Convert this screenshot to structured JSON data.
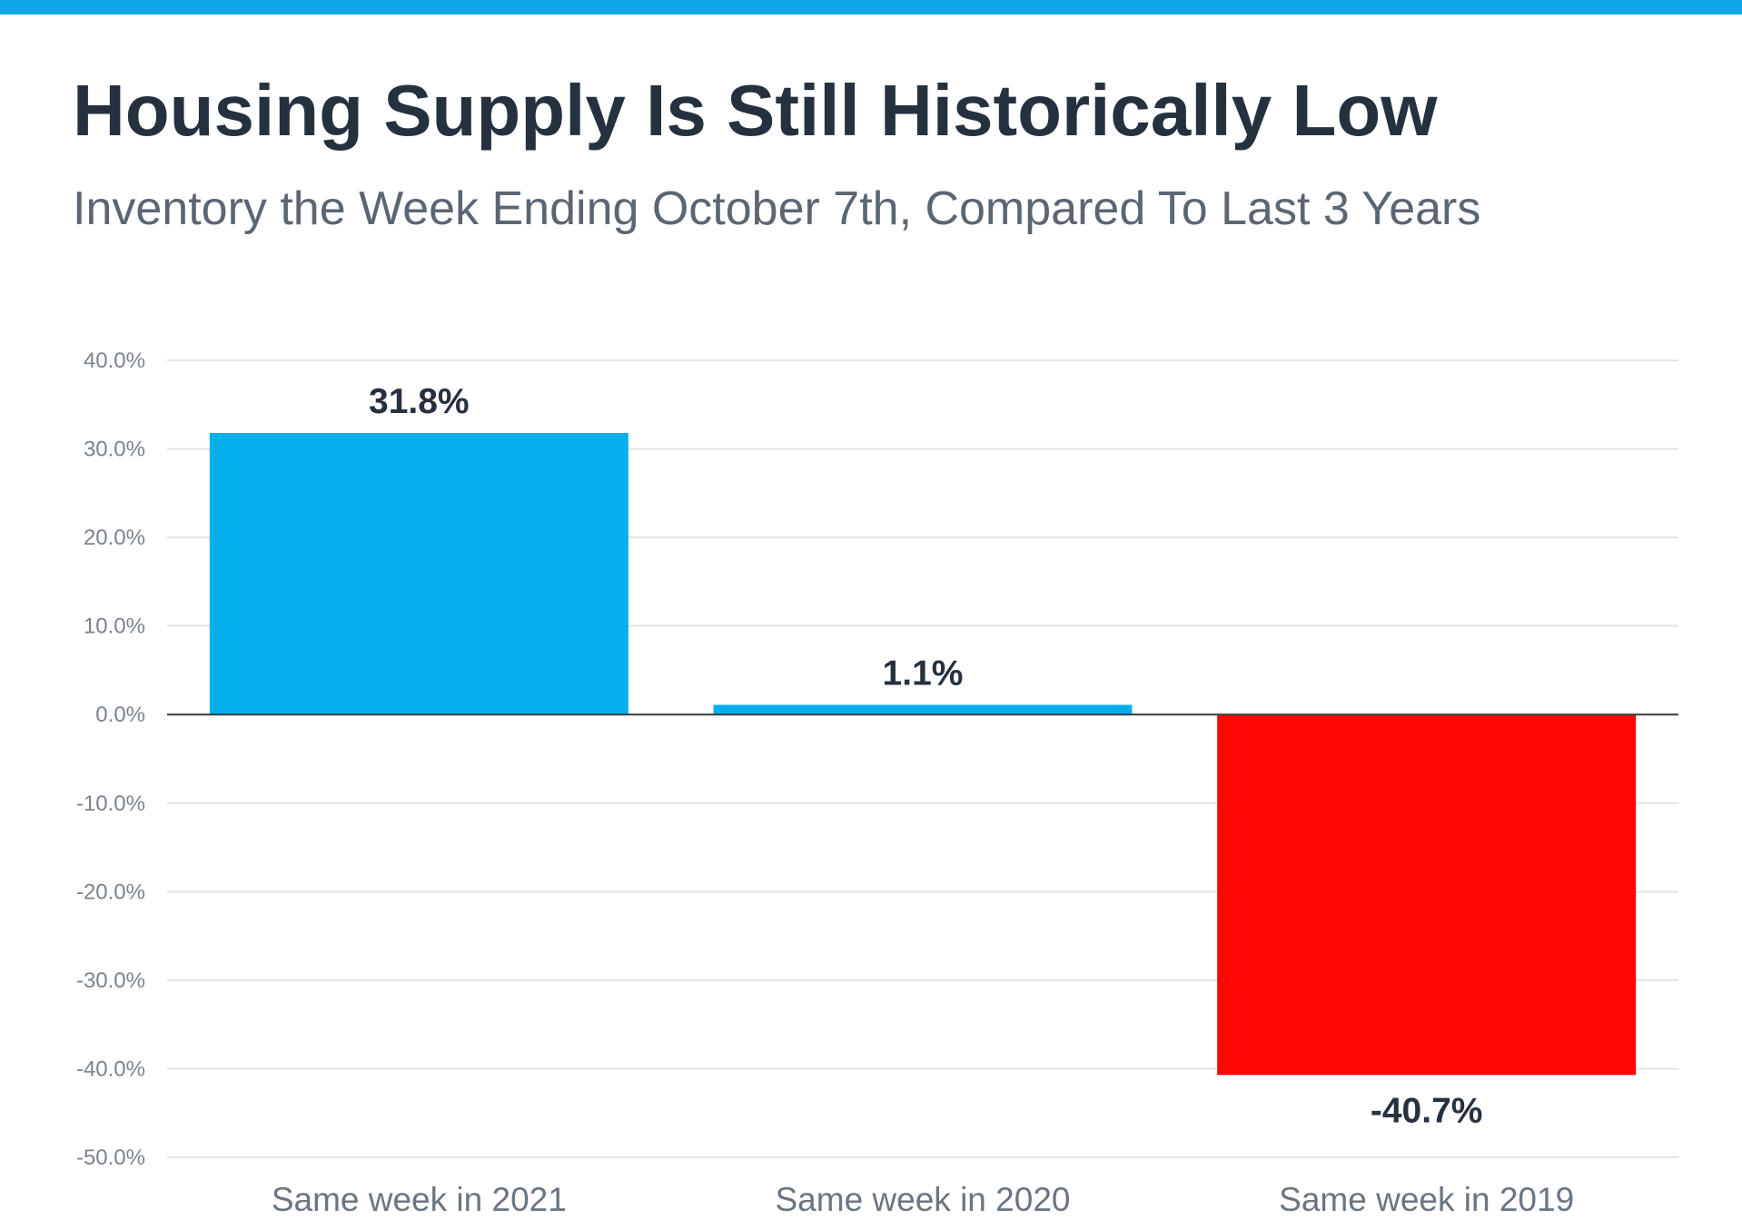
{
  "header": {
    "title": "Housing Supply Is Still Historically Low",
    "subtitle": "Inventory the Week Ending October 7th, Compared To Last 3 Years"
  },
  "colors": {
    "brand_bar": "#0ea5e9",
    "positive": "#06aeec",
    "negative": "#ff0503"
  },
  "chart_data": {
    "type": "bar",
    "title": "Housing Supply Is Still Historically Low",
    "subtitle": "Inventory the Week Ending October 7th, Compared To Last 3 Years",
    "xlabel": "",
    "ylabel": "",
    "categories": [
      "Same week in 2021",
      "Same week in 2020",
      "Same week in 2019"
    ],
    "values": [
      31.8,
      1.1,
      -40.7
    ],
    "data_labels": [
      "31.8%",
      "1.1%",
      "-40.7%"
    ],
    "ylim": [
      -50,
      40
    ],
    "yticks": [
      40,
      30,
      20,
      10,
      0,
      -10,
      -20,
      -30,
      -40,
      -50
    ],
    "ytick_labels": [
      "40.0%",
      "30.0%",
      "20.0%",
      "10.0%",
      "0.0%",
      "-10.0%",
      "-20.0%",
      "-30.0%",
      "-40.0%",
      "-50.0%"
    ],
    "grid": true,
    "legend": "none"
  }
}
